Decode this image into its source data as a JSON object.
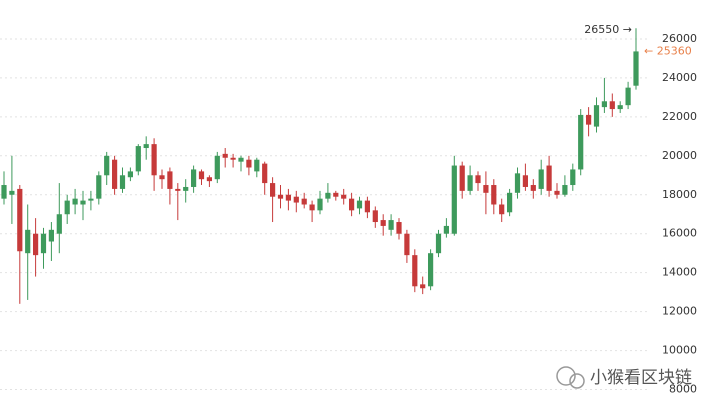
{
  "chart_data": {
    "type": "candlestick",
    "open": [
      17800,
      18000,
      18300,
      15000,
      16000,
      15000,
      15600,
      16000,
      17000,
      17500,
      17500,
      17700,
      17800,
      19000,
      19800,
      18300,
      18900,
      19200,
      20400,
      20600,
      19000,
      19200,
      18300,
      18200,
      18400,
      19200,
      18900,
      18800,
      20100,
      19900,
      19700,
      19800,
      19200,
      19600,
      18600,
      18000,
      18000,
      17900,
      17800,
      17500,
      17200,
      17800,
      18100,
      18000,
      17800,
      17300,
      17700,
      17200,
      16700,
      16200,
      16600,
      16000,
      14900,
      13400,
      13300,
      15000,
      16000,
      16000,
      19500,
      18200,
      19000,
      18500,
      18500,
      17500,
      17100,
      18100,
      19000,
      18500,
      18300,
      19500,
      18200,
      18000,
      18500,
      19300,
      22100,
      21500,
      22500,
      22800,
      22400,
      22600,
      23600
    ],
    "high": [
      19200,
      20000,
      18500,
      17500,
      16800,
      16300,
      16600,
      18600,
      18000,
      18300,
      18200,
      18200,
      19200,
      20200,
      20000,
      19400,
      19400,
      20600,
      21000,
      20900,
      19300,
      19400,
      18600,
      18800,
      19500,
      19300,
      19000,
      20200,
      20400,
      20100,
      20000,
      20000,
      19900,
      19700,
      18900,
      18500,
      18300,
      18200,
      18100,
      17700,
      18200,
      18600,
      18200,
      18300,
      18100,
      17900,
      17900,
      17400,
      17000,
      17000,
      16800,
      16200,
      15200,
      13800,
      15200,
      16200,
      16800,
      20000,
      19700,
      19500,
      19200,
      19200,
      18800,
      17800,
      18300,
      19400,
      19600,
      18800,
      19800,
      20000,
      18600,
      19000,
      19600,
      22400,
      22500,
      23000,
      24000,
      23200,
      22800,
      23800,
      26550
    ],
    "low": [
      17500,
      16500,
      12400,
      12600,
      13800,
      14200,
      14600,
      15000,
      16500,
      17000,
      16700,
      17200,
      17500,
      18500,
      18000,
      18100,
      18700,
      19000,
      19800,
      18200,
      18300,
      17500,
      16700,
      17600,
      18100,
      18500,
      18400,
      18600,
      19400,
      19400,
      19200,
      19000,
      18900,
      18000,
      16600,
      17300,
      17200,
      17100,
      17300,
      16600,
      17000,
      17600,
      17700,
      17500,
      16900,
      17000,
      16800,
      16300,
      15900,
      15900,
      15700,
      14500,
      13000,
      12900,
      13100,
      14800,
      15800,
      15900,
      17800,
      18000,
      18200,
      17000,
      17000,
      16600,
      16900,
      17800,
      18200,
      17800,
      18000,
      17900,
      17800,
      17900,
      18200,
      19000,
      21000,
      21200,
      22200,
      22000,
      22200,
      22400,
      23400
    ],
    "close": [
      18500,
      18200,
      15100,
      16200,
      14900,
      16000,
      16200,
      17000,
      17700,
      17800,
      17700,
      17800,
      19000,
      20000,
      18300,
      19000,
      19200,
      20500,
      20600,
      19000,
      18800,
      18300,
      18200,
      18400,
      19300,
      18800,
      18700,
      20000,
      19900,
      19800,
      19900,
      19400,
      19800,
      18600,
      17900,
      17800,
      17700,
      17600,
      17500,
      17200,
      17800,
      18100,
      17900,
      17800,
      17200,
      17700,
      17100,
      16600,
      16400,
      16700,
      16000,
      14900,
      13300,
      13200,
      15000,
      16000,
      16400,
      19500,
      18200,
      19000,
      18600,
      18100,
      17500,
      17000,
      18100,
      19100,
      18400,
      18200,
      19300,
      18200,
      18000,
      18500,
      19300,
      22100,
      21600,
      22600,
      22800,
      22400,
      22600,
      23500,
      25360
    ],
    "up_color": "#3e9a5c",
    "down_color": "#c63a3a",
    "ylim": [
      7000,
      28000
    ],
    "yticks": [
      8000,
      10000,
      12000,
      14000,
      16000,
      18000,
      20000,
      22000,
      24000,
      26000
    ],
    "grid": true,
    "annotations": [
      {
        "text": "26550 →",
        "value": 26550,
        "color": "#333333"
      },
      {
        "text": "← 25360",
        "value": 25360,
        "color": "#e8804a"
      }
    ],
    "watermark": "小猴看区块链"
  }
}
